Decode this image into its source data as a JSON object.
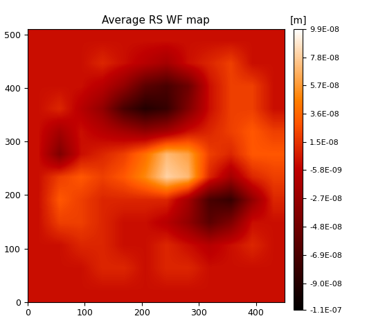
{
  "chart_data": {
    "type": "heatmap",
    "title": "Average RS WF map",
    "xlim": [
      0,
      450
    ],
    "ylim": [
      0,
      510
    ],
    "xticks": [
      0,
      100,
      200,
      300,
      400
    ],
    "yticks": [
      0,
      100,
      200,
      300,
      400,
      500
    ],
    "cells": [
      [
        0,
        0,
        0,
        0,
        0,
        0,
        0,
        0,
        0,
        0,
        0,
        0
      ],
      [
        0,
        0,
        0,
        1e-08,
        0,
        -1e-08,
        -2e-08,
        0,
        1e-08,
        2e-08,
        0,
        0
      ],
      [
        0,
        0,
        0,
        -1e-08,
        -3e-08,
        -6e-08,
        -7e-08,
        -5e-08,
        0,
        2e-08,
        2e-08,
        0
      ],
      [
        0,
        1e-08,
        -1e-08,
        -3e-08,
        -7e-08,
        -9e-08,
        -8e-08,
        -4e-08,
        0,
        2e-08,
        2e-08,
        0
      ],
      [
        0,
        -2e-08,
        0,
        -1e-08,
        -2e-08,
        -3e-08,
        -2e-08,
        0,
        1e-08,
        2e-08,
        3e-08,
        2e-08
      ],
      [
        0,
        -4e-08,
        0,
        1e-08,
        2e-08,
        4e-08,
        7e-08,
        6e-08,
        2e-08,
        1e-08,
        3e-08,
        3e-08
      ],
      [
        0,
        2e-08,
        3e-08,
        2e-08,
        3e-08,
        5e-08,
        8e-08,
        7e-08,
        1e-08,
        -2e-08,
        1e-08,
        2e-08
      ],
      [
        0,
        3e-08,
        2e-08,
        1e-08,
        1e-08,
        1e-08,
        1e-08,
        -2e-08,
        -7e-08,
        -8e-08,
        -3e-08,
        1e-08
      ],
      [
        0,
        2e-08,
        2e-08,
        1e-08,
        0,
        0,
        -1e-08,
        -3e-08,
        -6e-08,
        -4e-08,
        0,
        0
      ],
      [
        0,
        0,
        1e-08,
        1e-08,
        0,
        0,
        1e-08,
        0,
        -1e-08,
        0,
        1e-08,
        0
      ],
      [
        0,
        0,
        0,
        1e-08,
        1e-08,
        0,
        1e-08,
        1e-08,
        0,
        0,
        0,
        0
      ],
      [
        0,
        0,
        0,
        0,
        0,
        0,
        0,
        0,
        0,
        0,
        0,
        0
      ]
    ],
    "colorbar_label": "[m]",
    "colorbar_range": [
      -1.1e-07,
      9.9e-08
    ],
    "colorbar_ticks": [
      {
        "value": 9.9e-08,
        "label": "9.9E-08"
      },
      {
        "value": 7.8e-08,
        "label": "7.8E-08"
      },
      {
        "value": 5.7e-08,
        "label": "5.7E-08"
      },
      {
        "value": 3.6e-08,
        "label": "3.6E-08"
      },
      {
        "value": 1.5e-08,
        "label": "1.5E-08"
      },
      {
        "value": -5.8e-09,
        "label": "-5.8E-09"
      },
      {
        "value": -2.7e-08,
        "label": "-2.7E-08"
      },
      {
        "value": -4.8e-08,
        "label": "-4.8E-08"
      },
      {
        "value": -6.9e-08,
        "label": "-6.9E-08"
      },
      {
        "value": -9e-08,
        "label": "-9.0E-08"
      },
      {
        "value": -1.1e-07,
        "label": "-1.1E-07"
      }
    ]
  }
}
